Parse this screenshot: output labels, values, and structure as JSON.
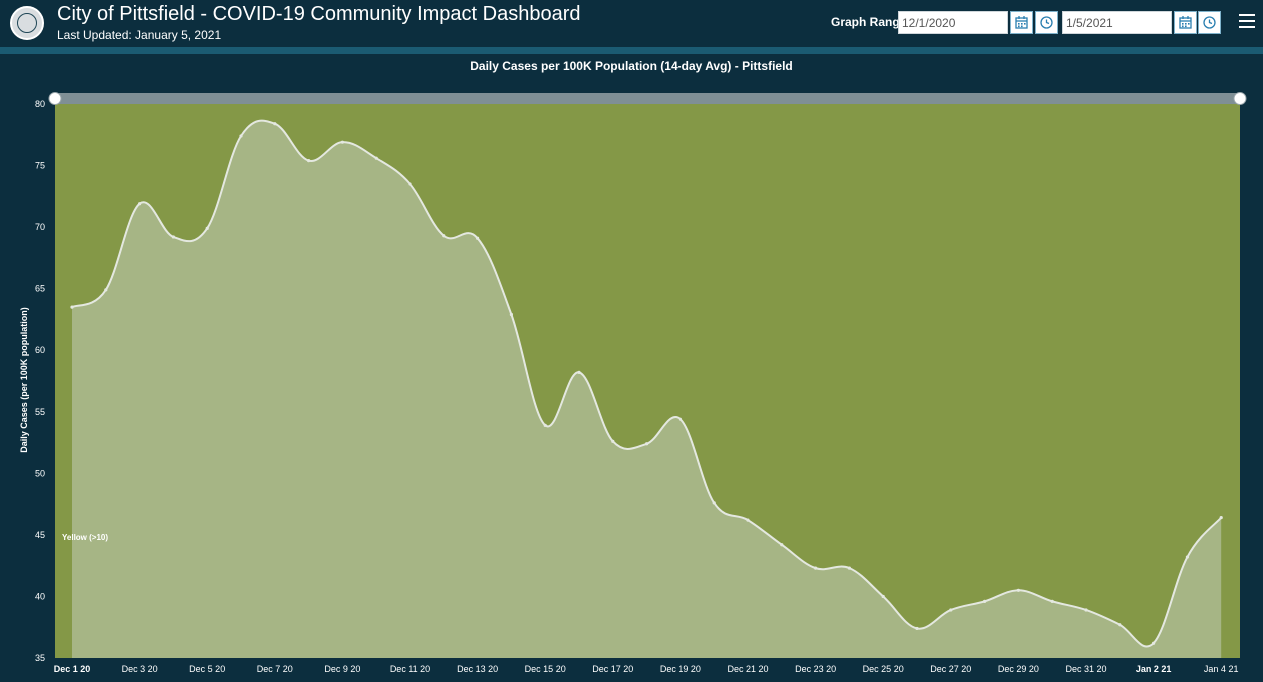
{
  "header": {
    "title": "City of Pittsfield - COVID-19 Community Impact Dashboard",
    "subtitle": "Last Updated: January 5, 2021",
    "range_label": "Graph Range",
    "start_date": "12/1/2020",
    "end_date": "1/5/2021"
  },
  "colors": {
    "header_bg": "#0c2e3e",
    "band": "#1b5b72",
    "plot_bg": "#849847",
    "area_fill": "#a6b585",
    "line": "#e4e8e0",
    "scrollbar": "#7f8f95"
  },
  "chart_data": {
    "type": "area",
    "title": "Daily Cases per 100K Population (14-day Avg) - Pittsfield",
    "xlabel": "",
    "ylabel": "Daily Cases (per 100K population)",
    "ylim": [
      35,
      80
    ],
    "yticks": [
      35,
      40,
      45,
      50,
      55,
      60,
      65,
      70,
      75,
      80
    ],
    "x_start": "2020-12-01",
    "x_end": "2021-01-04",
    "xtick_labels": [
      "Dec 1 20",
      "Dec 3 20",
      "Dec 5 20",
      "Dec 7 20",
      "Dec 9 20",
      "Dec 11 20",
      "Dec 13 20",
      "Dec 15 20",
      "Dec 17 20",
      "Dec 19 20",
      "Dec 21 20",
      "Dec 23 20",
      "Dec 25 20",
      "Dec 27 20",
      "Dec 29 20",
      "Dec 31 20",
      "Jan 2 21",
      "Jan 4 21"
    ],
    "bold_ticks": [
      "Dec 1 20",
      "Jan 2 21"
    ],
    "annotations": [
      {
        "text": "Yellow (>10)"
      }
    ],
    "series": [
      {
        "values": [
          63.5,
          64.9,
          71.9,
          69.2,
          69.9,
          77.4,
          78.4,
          75.4,
          76.9,
          75.6,
          73.5,
          69.3,
          69.1,
          62.9,
          53.9,
          58.2,
          52.6,
          52.4,
          54.4,
          47.6,
          46.2,
          44.2,
          42.3,
          42.3,
          40.0,
          37.4,
          38.9,
          39.6,
          40.5,
          39.6,
          38.9,
          37.7,
          36.2,
          43.2,
          46.4
        ]
      }
    ],
    "grid": false,
    "legend": "none"
  }
}
